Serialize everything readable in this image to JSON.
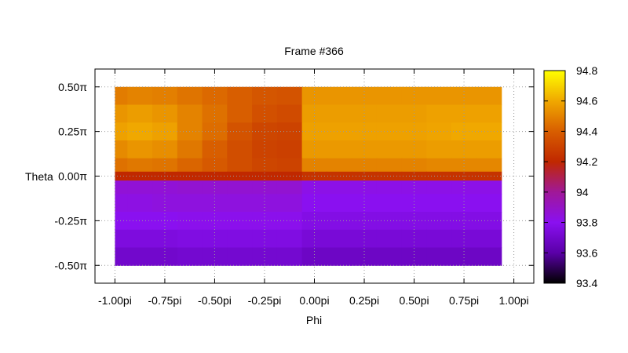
{
  "chart_data": {
    "type": "heatmap",
    "title": "Frame #366",
    "xlabel": "Phi",
    "ylabel": "Theta",
    "xlim": [
      -1.1,
      1.1
    ],
    "ylim": [
      -0.6,
      0.6
    ],
    "x_ticks": [
      {
        "value": -1.0,
        "label": "-1.00pi"
      },
      {
        "value": -0.75,
        "label": "-0.75pi"
      },
      {
        "value": -0.5,
        "label": "-0.50pi"
      },
      {
        "value": -0.25,
        "label": "-0.25pi"
      },
      {
        "value": 0.0,
        "label": "0.00pi"
      },
      {
        "value": 0.25,
        "label": "0.25pi"
      },
      {
        "value": 0.5,
        "label": "0.50pi"
      },
      {
        "value": 0.75,
        "label": "0.75pi"
      },
      {
        "value": 1.0,
        "label": "1.00pi"
      }
    ],
    "y_ticks": [
      {
        "value": 0.5,
        "label": "0.50π"
      },
      {
        "value": 0.25,
        "label": "0.25π"
      },
      {
        "value": 0.0,
        "label": "0.00π"
      },
      {
        "value": -0.25,
        "label": "-0.25π"
      },
      {
        "value": -0.5,
        "label": "-0.50π"
      }
    ],
    "grid": true,
    "colorbar": {
      "range": [
        93.4,
        94.8
      ],
      "ticks": [
        "93.4",
        "93.6",
        "93.8",
        "94",
        "94.2",
        "94.4",
        "94.6",
        "94.8"
      ],
      "palette": [
        "#000000",
        "#5a00a8",
        "#8a10f0",
        "#a01898",
        "#c02800",
        "#d85e00",
        "#f0a800",
        "#ffff00"
      ]
    },
    "phi": [
      -1.0,
      -0.875,
      -0.75,
      -0.625,
      -0.5,
      -0.375,
      -0.25,
      -0.125,
      0.0,
      0.125,
      0.25,
      0.375,
      0.5,
      0.625,
      0.75,
      0.875
    ],
    "theta": [
      0.45,
      0.35,
      0.25,
      0.15,
      0.05,
      0.0,
      -0.05,
      -0.15,
      -0.25,
      -0.35,
      -0.45
    ],
    "values": [
      [
        94.48,
        94.5,
        94.49,
        94.46,
        94.43,
        94.4,
        94.37,
        94.36,
        94.55,
        94.55,
        94.55,
        94.55,
        94.55,
        94.55,
        94.55,
        94.55
      ],
      [
        94.55,
        94.57,
        94.55,
        94.5,
        94.45,
        94.4,
        94.35,
        94.33,
        94.57,
        94.57,
        94.57,
        94.57,
        94.57,
        94.58,
        94.58,
        94.58
      ],
      [
        94.58,
        94.6,
        94.58,
        94.5,
        94.44,
        94.36,
        94.31,
        94.3,
        94.58,
        94.58,
        94.58,
        94.58,
        94.58,
        94.59,
        94.6,
        94.6
      ],
      [
        94.52,
        94.55,
        94.53,
        94.47,
        94.4,
        94.34,
        94.3,
        94.29,
        94.56,
        94.56,
        94.56,
        94.56,
        94.56,
        94.57,
        94.57,
        94.57
      ],
      [
        94.45,
        94.47,
        94.46,
        94.42,
        94.38,
        94.34,
        94.31,
        94.3,
        94.5,
        94.5,
        94.5,
        94.5,
        94.5,
        94.51,
        94.51,
        94.51
      ],
      [
        94.2,
        94.2,
        94.2,
        94.2,
        94.2,
        94.2,
        94.2,
        94.2,
        94.24,
        94.24,
        94.24,
        94.24,
        94.24,
        94.24,
        94.24,
        94.24
      ],
      [
        93.86,
        93.86,
        93.86,
        93.87,
        93.87,
        93.87,
        93.87,
        93.87,
        93.82,
        93.82,
        93.82,
        93.82,
        93.82,
        93.82,
        93.82,
        93.82
      ],
      [
        93.83,
        93.83,
        93.84,
        93.84,
        93.84,
        93.84,
        93.84,
        93.84,
        93.8,
        93.8,
        93.8,
        93.8,
        93.8,
        93.8,
        93.8,
        93.8
      ],
      [
        93.8,
        93.8,
        93.8,
        93.81,
        93.81,
        93.81,
        93.81,
        93.81,
        93.77,
        93.77,
        93.77,
        93.77,
        93.77,
        93.77,
        93.77,
        93.77
      ],
      [
        93.75,
        93.75,
        93.75,
        93.76,
        93.76,
        93.76,
        93.76,
        93.76,
        93.73,
        93.73,
        93.73,
        93.73,
        93.73,
        93.73,
        93.73,
        93.73
      ],
      [
        93.7,
        93.7,
        93.7,
        93.71,
        93.71,
        93.71,
        93.71,
        93.71,
        93.68,
        93.68,
        93.68,
        93.68,
        93.68,
        93.68,
        93.68,
        93.68
      ]
    ]
  }
}
